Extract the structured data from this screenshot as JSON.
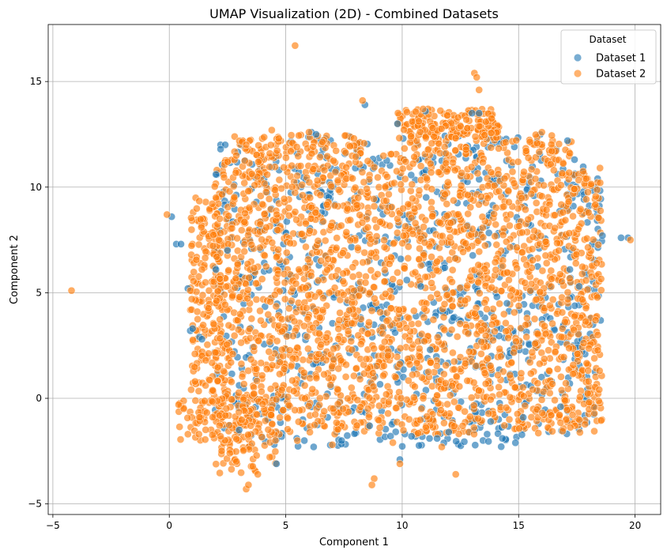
{
  "chart_data": {
    "type": "scatter",
    "title": "UMAP Visualization (2D) - Combined Datasets",
    "xlabel": "Component 1",
    "ylabel": "Component 2",
    "xlim": [
      -5.2,
      21.1
    ],
    "ylim": [
      -5.5,
      17.7
    ],
    "xticks": [
      -5,
      0,
      5,
      10,
      15,
      20
    ],
    "yticks": [
      -5,
      0,
      5,
      10,
      15
    ],
    "grid": true,
    "legend": {
      "title": "Dataset",
      "placement": "top-right"
    },
    "series": [
      {
        "name": "Dataset 1",
        "color": "#1f77b4",
        "points": [
          [
            0.1,
            8.6
          ],
          [
            0.3,
            7.3
          ],
          [
            0.5,
            7.3
          ],
          [
            19.4,
            7.6
          ],
          [
            19.7,
            7.6
          ],
          [
            0.9,
            3.2
          ],
          [
            1.0,
            3.3
          ],
          [
            1.3,
            2.9
          ],
          [
            1.4,
            2.8
          ],
          [
            0.8,
            5.2
          ],
          [
            2.2,
            12.0
          ],
          [
            2.4,
            12.0
          ],
          [
            2.2,
            11.8
          ],
          [
            6.1,
            12.6
          ],
          [
            6.3,
            12.5
          ],
          [
            8.4,
            13.9
          ],
          [
            9.8,
            13.0
          ],
          [
            13.0,
            13.5
          ],
          [
            13.3,
            13.5
          ],
          [
            11.0,
            13.6
          ],
          [
            17.1,
            12.2
          ],
          [
            17.4,
            11.3
          ],
          [
            2.0,
            10.6
          ],
          [
            2.5,
            7.0
          ],
          [
            2.0,
            6.1
          ],
          [
            4.6,
            -3.1
          ],
          [
            6.2,
            -2.3
          ],
          [
            7.4,
            -2.0
          ],
          [
            9.9,
            -2.9
          ],
          [
            10.4,
            -1.8
          ],
          [
            11.5,
            -1.9
          ],
          [
            13.8,
            -1.1
          ],
          [
            15.2,
            -0.9
          ],
          [
            16.8,
            -0.4
          ],
          [
            8.6,
            -1.3
          ],
          [
            17.2,
            6.1
          ],
          [
            17.6,
            5.3
          ],
          [
            14.5,
            4.5
          ],
          [
            10.2,
            5.6
          ],
          [
            10.8,
            5.3
          ],
          [
            11.2,
            2.3
          ],
          [
            3.0,
            -1.5
          ],
          [
            5.8,
            -2.0
          ],
          [
            12.0,
            -1.6
          ],
          [
            18.6,
            7.7
          ]
        ]
      },
      {
        "name": "Dataset 2",
        "color": "#ff7f0e",
        "points": [
          [
            -4.2,
            5.1
          ],
          [
            -0.1,
            8.7
          ],
          [
            5.4,
            16.7
          ],
          [
            13.1,
            15.4
          ],
          [
            13.2,
            15.2
          ],
          [
            13.3,
            14.6
          ],
          [
            8.3,
            14.1
          ],
          [
            19.8,
            7.5
          ],
          [
            12.3,
            -3.6
          ],
          [
            8.8,
            -3.8
          ],
          [
            8.7,
            -4.1
          ],
          [
            3.3,
            -4.3
          ],
          [
            3.4,
            -4.1
          ],
          [
            9.9,
            -3.1
          ],
          [
            4.4,
            12.7
          ],
          [
            4.7,
            12.3
          ],
          [
            6.0,
            12.6
          ],
          [
            0.4,
            -0.3
          ],
          [
            0.8,
            -1.7
          ],
          [
            1.3,
            -0.9
          ],
          [
            0.9,
            5.1
          ],
          [
            1.2,
            4.1
          ],
          [
            1.4,
            6.1
          ],
          [
            2.0,
            9.5
          ],
          [
            18.5,
            10.2
          ],
          [
            18.4,
            3.0
          ],
          [
            18.0,
            0.8
          ],
          [
            17.0,
            -0.1
          ],
          [
            16.4,
            -0.8
          ],
          [
            14.6,
            -1.0
          ],
          [
            12.6,
            -1.3
          ],
          [
            11.7,
            -2.3
          ],
          [
            7.0,
            -2.2
          ],
          [
            5.5,
            -2.0
          ],
          [
            2.6,
            -2.6
          ],
          [
            3.8,
            -3.6
          ],
          [
            2.2,
            -1.8
          ],
          [
            9.6,
            -2.1
          ],
          [
            10.9,
            13.7
          ],
          [
            12.4,
            13.3
          ],
          [
            16.0,
            12.6
          ],
          [
            17.2,
            11.6
          ],
          [
            17.9,
            10.4
          ],
          [
            2.5,
            11.2
          ],
          [
            3.3,
            12.0
          ]
        ]
      }
    ]
  }
}
